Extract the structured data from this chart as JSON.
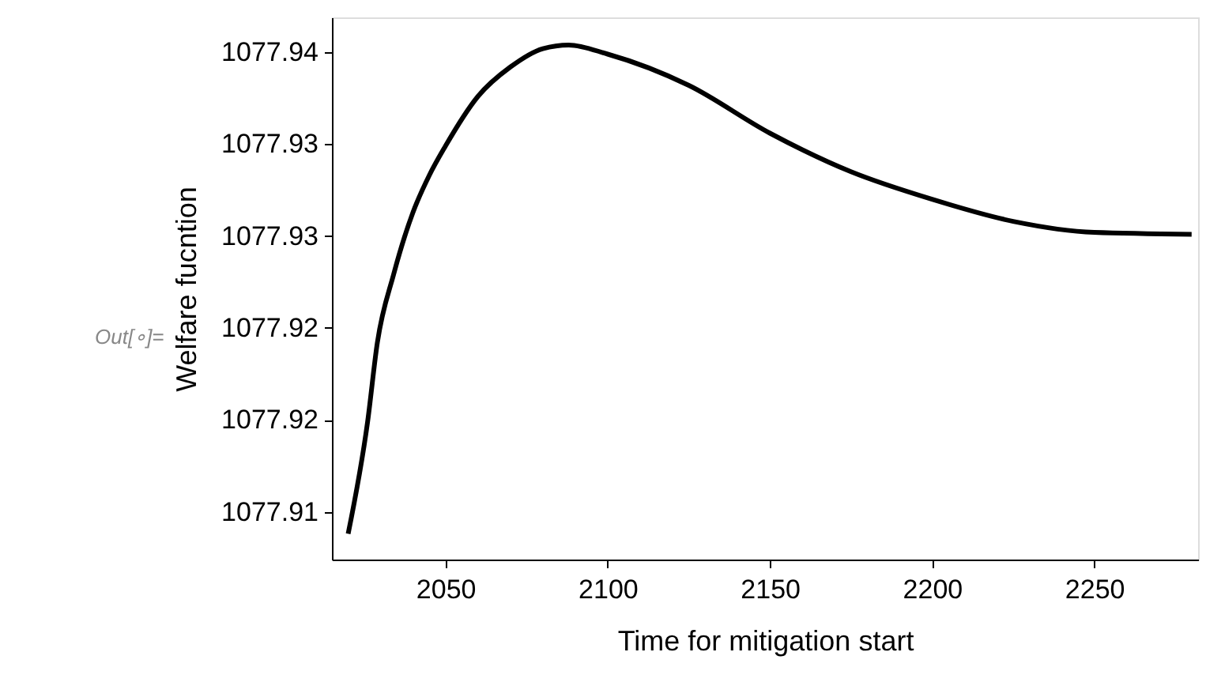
{
  "chart_data": {
    "type": "line",
    "xlabel": "Time for mitigation start",
    "ylabel": "Welfare fucntion",
    "x": [
      2020,
      2026,
      2029,
      2034,
      2040,
      2045,
      2050,
      2060,
      2070,
      2080,
      2088,
      2100,
      2125,
      2150,
      2175,
      2200,
      2225,
      2250,
      2280
    ],
    "series": [
      {
        "color": "#000000",
        "values": [
          1077.9138,
          1077.9199,
          1077.9242,
          1077.9279,
          1077.9313,
          1077.9333,
          1077.9349,
          1077.9376,
          1077.9392,
          1077.9402,
          1077.9404,
          1077.9399,
          1077.9382,
          1077.9356,
          1077.9335,
          1077.932,
          1077.9308,
          1077.9302,
          1077.9301
        ]
      }
    ],
    "xlim": [
      2015,
      2282
    ],
    "ylim": [
      1077.9124,
      1077.9419
    ],
    "xticks": [
      2050,
      2100,
      2150,
      2200,
      2250
    ],
    "yticks": [
      {
        "value": 1077.94,
        "label": "1077.94"
      },
      {
        "value": 1077.935,
        "label": "1077.93"
      },
      {
        "value": 1077.93,
        "label": "1077.93"
      },
      {
        "value": 1077.925,
        "label": "1077.92"
      },
      {
        "value": 1077.92,
        "label": "1077.92"
      },
      {
        "value": 1077.915,
        "label": "1077.91"
      }
    ],
    "grid": false,
    "line_style": "solid",
    "marker": "none",
    "annotations": [
      "Out[∘]="
    ]
  }
}
